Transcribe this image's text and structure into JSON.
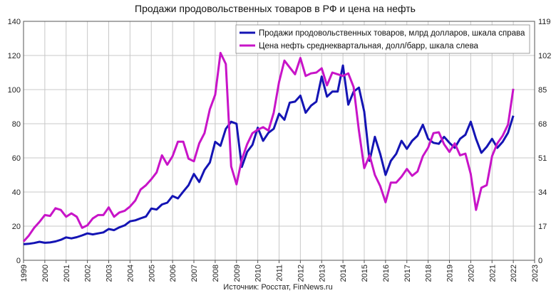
{
  "title": "Продажи продовольственных товаров в РФ и цена на нефть",
  "source": "Источник: Росстат, FinNews.ru",
  "chart_data": {
    "type": "line",
    "x_ticks": [
      "1999",
      "2000",
      "2001",
      "2002",
      "2003",
      "2004",
      "2005",
      "2006",
      "2007",
      "2008",
      "2009",
      "2010",
      "2011",
      "2012",
      "2013",
      "2014",
      "2015",
      "2016",
      "2017",
      "2018",
      "2019",
      "2020",
      "2021",
      "2022",
      "2023"
    ],
    "x_range": [
      1999,
      2023
    ],
    "y_left": {
      "range": [
        0,
        140
      ],
      "ticks": [
        "0",
        "20",
        "40",
        "60",
        "80",
        "100",
        "120",
        "140"
      ]
    },
    "y_right": {
      "range": [
        0,
        119
      ],
      "ticks": [
        "0",
        "17",
        "34",
        "51",
        "68",
        "85",
        "102",
        "119"
      ]
    },
    "grid": true,
    "legend_position": "top-right",
    "series": [
      {
        "name": "Продажи продовольственных товаров, млрд долларов, шкала справа",
        "axis": "right",
        "color": "#1414b4",
        "points": [
          [
            1999.0,
            8.0
          ],
          [
            1999.25,
            8.2
          ],
          [
            1999.5,
            8.6
          ],
          [
            1999.75,
            9.2
          ],
          [
            2000.0,
            8.7
          ],
          [
            2000.25,
            8.9
          ],
          [
            2000.5,
            9.4
          ],
          [
            2000.75,
            10.2
          ],
          [
            2001.0,
            11.4
          ],
          [
            2001.25,
            10.9
          ],
          [
            2001.5,
            11.5
          ],
          [
            2001.75,
            12.4
          ],
          [
            2002.0,
            13.4
          ],
          [
            2002.25,
            12.9
          ],
          [
            2002.5,
            13.4
          ],
          [
            2002.75,
            13.9
          ],
          [
            2003.0,
            15.6
          ],
          [
            2003.25,
            15.0
          ],
          [
            2003.5,
            16.4
          ],
          [
            2003.75,
            17.4
          ],
          [
            2004.0,
            19.4
          ],
          [
            2004.25,
            19.9
          ],
          [
            2004.5,
            20.9
          ],
          [
            2004.75,
            21.8
          ],
          [
            2005.0,
            25.8
          ],
          [
            2005.25,
            25.3
          ],
          [
            2005.5,
            27.8
          ],
          [
            2005.75,
            28.7
          ],
          [
            2006.0,
            32.0
          ],
          [
            2006.25,
            30.8
          ],
          [
            2006.5,
            34.2
          ],
          [
            2006.75,
            37.4
          ],
          [
            2007.0,
            43.0
          ],
          [
            2007.25,
            39.0
          ],
          [
            2007.5,
            45.0
          ],
          [
            2007.75,
            48.7
          ],
          [
            2008.0,
            59.0
          ],
          [
            2008.25,
            57.0
          ],
          [
            2008.5,
            65.5
          ],
          [
            2008.75,
            69.0
          ],
          [
            2009.0,
            68.0
          ],
          [
            2009.25,
            46.5
          ],
          [
            2009.5,
            54.0
          ],
          [
            2009.75,
            57.5
          ],
          [
            2010.0,
            66.0
          ],
          [
            2010.25,
            59.5
          ],
          [
            2010.5,
            63.5
          ],
          [
            2010.75,
            65.5
          ],
          [
            2011.0,
            73.0
          ],
          [
            2011.25,
            70.0
          ],
          [
            2011.5,
            78.5
          ],
          [
            2011.75,
            79.0
          ],
          [
            2012.0,
            82.0
          ],
          [
            2012.25,
            73.5
          ],
          [
            2012.5,
            77.0
          ],
          [
            2012.75,
            79.0
          ],
          [
            2013.0,
            91.5
          ],
          [
            2013.25,
            81.5
          ],
          [
            2013.5,
            84.0
          ],
          [
            2013.75,
            84.0
          ],
          [
            2014.0,
            97.0
          ],
          [
            2014.25,
            77.5
          ],
          [
            2014.5,
            84.0
          ],
          [
            2014.75,
            86.0
          ],
          [
            2015.0,
            74.0
          ],
          [
            2015.25,
            49.5
          ],
          [
            2015.5,
            61.5
          ],
          [
            2015.75,
            53.0
          ],
          [
            2016.0,
            42.5
          ],
          [
            2016.25,
            49.5
          ],
          [
            2016.5,
            53.0
          ],
          [
            2016.75,
            59.5
          ],
          [
            2017.0,
            55.5
          ],
          [
            2017.25,
            59.5
          ],
          [
            2017.5,
            62.0
          ],
          [
            2017.75,
            67.5
          ],
          [
            2018.0,
            60.5
          ],
          [
            2018.25,
            58.5
          ],
          [
            2018.5,
            58.0
          ],
          [
            2018.75,
            61.5
          ],
          [
            2019.0,
            58.5
          ],
          [
            2019.25,
            56.0
          ],
          [
            2019.5,
            60.5
          ],
          [
            2019.75,
            62.5
          ],
          [
            2020.0,
            69.0
          ],
          [
            2020.25,
            60.5
          ],
          [
            2020.5,
            53.5
          ],
          [
            2020.75,
            56.5
          ],
          [
            2021.0,
            60.5
          ],
          [
            2021.25,
            56.0
          ],
          [
            2021.5,
            59.0
          ],
          [
            2021.75,
            63.5
          ],
          [
            2022.0,
            72.0
          ]
        ]
      },
      {
        "name": "Цена нефть среднеквартальная, долл/барр, шкала слева",
        "axis": "left",
        "color": "#c814c8",
        "points": [
          [
            1999.0,
            11.0
          ],
          [
            1999.25,
            14.5
          ],
          [
            1999.5,
            19.0
          ],
          [
            1999.75,
            22.5
          ],
          [
            2000.0,
            26.5
          ],
          [
            2000.25,
            26.0
          ],
          [
            2000.5,
            30.5
          ],
          [
            2000.75,
            29.5
          ],
          [
            2001.0,
            25.5
          ],
          [
            2001.25,
            27.5
          ],
          [
            2001.5,
            25.5
          ],
          [
            2001.75,
            19.0
          ],
          [
            2002.0,
            20.5
          ],
          [
            2002.25,
            24.5
          ],
          [
            2002.5,
            26.5
          ],
          [
            2002.75,
            26.5
          ],
          [
            2003.0,
            31.0
          ],
          [
            2003.25,
            25.5
          ],
          [
            2003.5,
            28.0
          ],
          [
            2003.75,
            29.0
          ],
          [
            2004.0,
            31.5
          ],
          [
            2004.25,
            35.0
          ],
          [
            2004.5,
            41.5
          ],
          [
            2004.75,
            44.0
          ],
          [
            2005.0,
            47.5
          ],
          [
            2005.25,
            51.5
          ],
          [
            2005.5,
            61.5
          ],
          [
            2005.75,
            56.0
          ],
          [
            2006.0,
            61.0
          ],
          [
            2006.25,
            69.5
          ],
          [
            2006.5,
            69.5
          ],
          [
            2006.75,
            59.5
          ],
          [
            2007.0,
            58.0
          ],
          [
            2007.25,
            68.5
          ],
          [
            2007.5,
            74.5
          ],
          [
            2007.75,
            88.5
          ],
          [
            2008.0,
            97.0
          ],
          [
            2008.25,
            121.5
          ],
          [
            2008.5,
            115.0
          ],
          [
            2008.75,
            55.0
          ],
          [
            2009.0,
            44.5
          ],
          [
            2009.25,
            59.0
          ],
          [
            2009.5,
            68.0
          ],
          [
            2009.75,
            74.5
          ],
          [
            2010.0,
            76.5
          ],
          [
            2010.25,
            78.0
          ],
          [
            2010.5,
            76.0
          ],
          [
            2010.75,
            86.5
          ],
          [
            2011.0,
            104.5
          ],
          [
            2011.25,
            117.0
          ],
          [
            2011.5,
            113.0
          ],
          [
            2011.75,
            109.0
          ],
          [
            2012.0,
            118.5
          ],
          [
            2012.25,
            108.0
          ],
          [
            2012.5,
            109.5
          ],
          [
            2012.75,
            110.0
          ],
          [
            2013.0,
            112.5
          ],
          [
            2013.25,
            102.5
          ],
          [
            2013.5,
            110.0
          ],
          [
            2013.75,
            109.0
          ],
          [
            2014.0,
            108.0
          ],
          [
            2014.25,
            109.5
          ],
          [
            2014.5,
            101.5
          ],
          [
            2014.75,
            76.0
          ],
          [
            2015.0,
            54.0
          ],
          [
            2015.25,
            61.5
          ],
          [
            2015.5,
            50.0
          ],
          [
            2015.75,
            43.5
          ],
          [
            2016.0,
            34.0
          ],
          [
            2016.25,
            45.5
          ],
          [
            2016.5,
            45.5
          ],
          [
            2016.75,
            49.0
          ],
          [
            2017.0,
            53.5
          ],
          [
            2017.25,
            49.5
          ],
          [
            2017.5,
            52.0
          ],
          [
            2017.75,
            61.0
          ],
          [
            2018.0,
            66.0
          ],
          [
            2018.25,
            74.5
          ],
          [
            2018.5,
            75.0
          ],
          [
            2018.75,
            68.0
          ],
          [
            2019.0,
            63.5
          ],
          [
            2019.25,
            68.5
          ],
          [
            2019.5,
            61.5
          ],
          [
            2019.75,
            62.5
          ],
          [
            2020.0,
            50.5
          ],
          [
            2020.25,
            29.5
          ],
          [
            2020.5,
            42.5
          ],
          [
            2020.75,
            44.0
          ],
          [
            2021.0,
            61.0
          ],
          [
            2021.25,
            68.5
          ],
          [
            2021.5,
            73.0
          ],
          [
            2021.75,
            79.5
          ],
          [
            2022.0,
            100.5
          ]
        ]
      }
    ]
  }
}
